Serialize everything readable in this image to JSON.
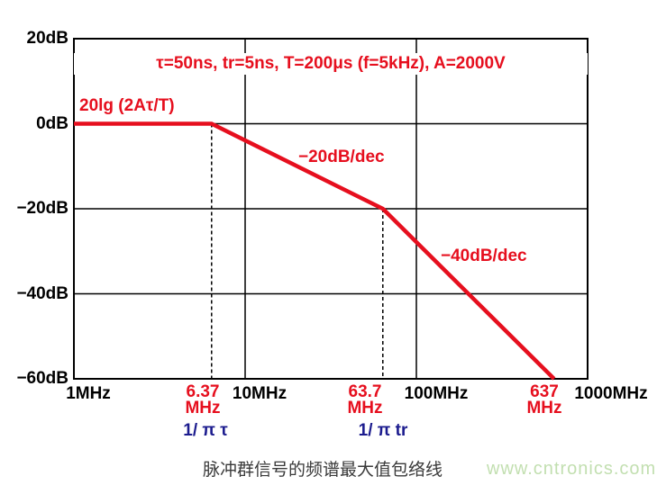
{
  "colors": {
    "curve_red": "#e60f1e",
    "formula_blue": "#1b1b8e",
    "axis_black": "#000000",
    "watermark_green": "#c2dfb0",
    "caption_gray": "#3a3a3a"
  },
  "caption": "脉冲群信号的频谱最大值包络线",
  "watermark": "www.cntronics.com",
  "chart_data": {
    "type": "line",
    "title": "脉冲群信号的频谱最大值包络线",
    "x_scale": "log",
    "x_unit": "MHz",
    "y_unit": "dB",
    "xlim": [
      1,
      1000
    ],
    "ylim": [
      -60,
      20
    ],
    "grid": true,
    "x_ticks": [
      {
        "f": 1,
        "label": "1MHz"
      },
      {
        "f": 10,
        "label": "10MHz"
      },
      {
        "f": 100,
        "label": "100MHz"
      },
      {
        "f": 1000,
        "label": "1000MHz"
      }
    ],
    "y_ticks": [
      {
        "db": 20,
        "label": "20dB"
      },
      {
        "db": 0,
        "label": "0dB"
      },
      {
        "db": -20,
        "label": "−20dB"
      },
      {
        "db": -40,
        "label": "−40dB"
      },
      {
        "db": -60,
        "label": "−60dB"
      }
    ],
    "series": [
      {
        "name": "spectrum-max-envelope",
        "color": "#e60f1e",
        "points_mhz_db": [
          [
            1,
            0
          ],
          [
            6.37,
            0
          ],
          [
            63.7,
            -20
          ],
          [
            637,
            -60
          ]
        ]
      }
    ],
    "breakpoints": [
      {
        "freq_mhz": 6.37,
        "value_label": "6.37",
        "unit_label": "MHz",
        "formula_label": "1/ π τ",
        "dashed_from_db": 0
      },
      {
        "freq_mhz": 63.7,
        "value_label": "63.7",
        "unit_label": "MHz",
        "formula_label": "1/ π tr",
        "dashed_from_db": -20
      },
      {
        "freq_mhz": 637,
        "value_label": "637",
        "unit_label": "MHz",
        "formula_label": null,
        "dashed_from_db": null
      }
    ],
    "annotations": {
      "params": "τ=50ns, tr=5ns, T=200μs (f=5kHz), A=2000V",
      "level_formula": "20lg (2Aτ/T)",
      "slope_segment1": "−20dB/dec",
      "slope_segment2": "−40dB/dec"
    }
  }
}
